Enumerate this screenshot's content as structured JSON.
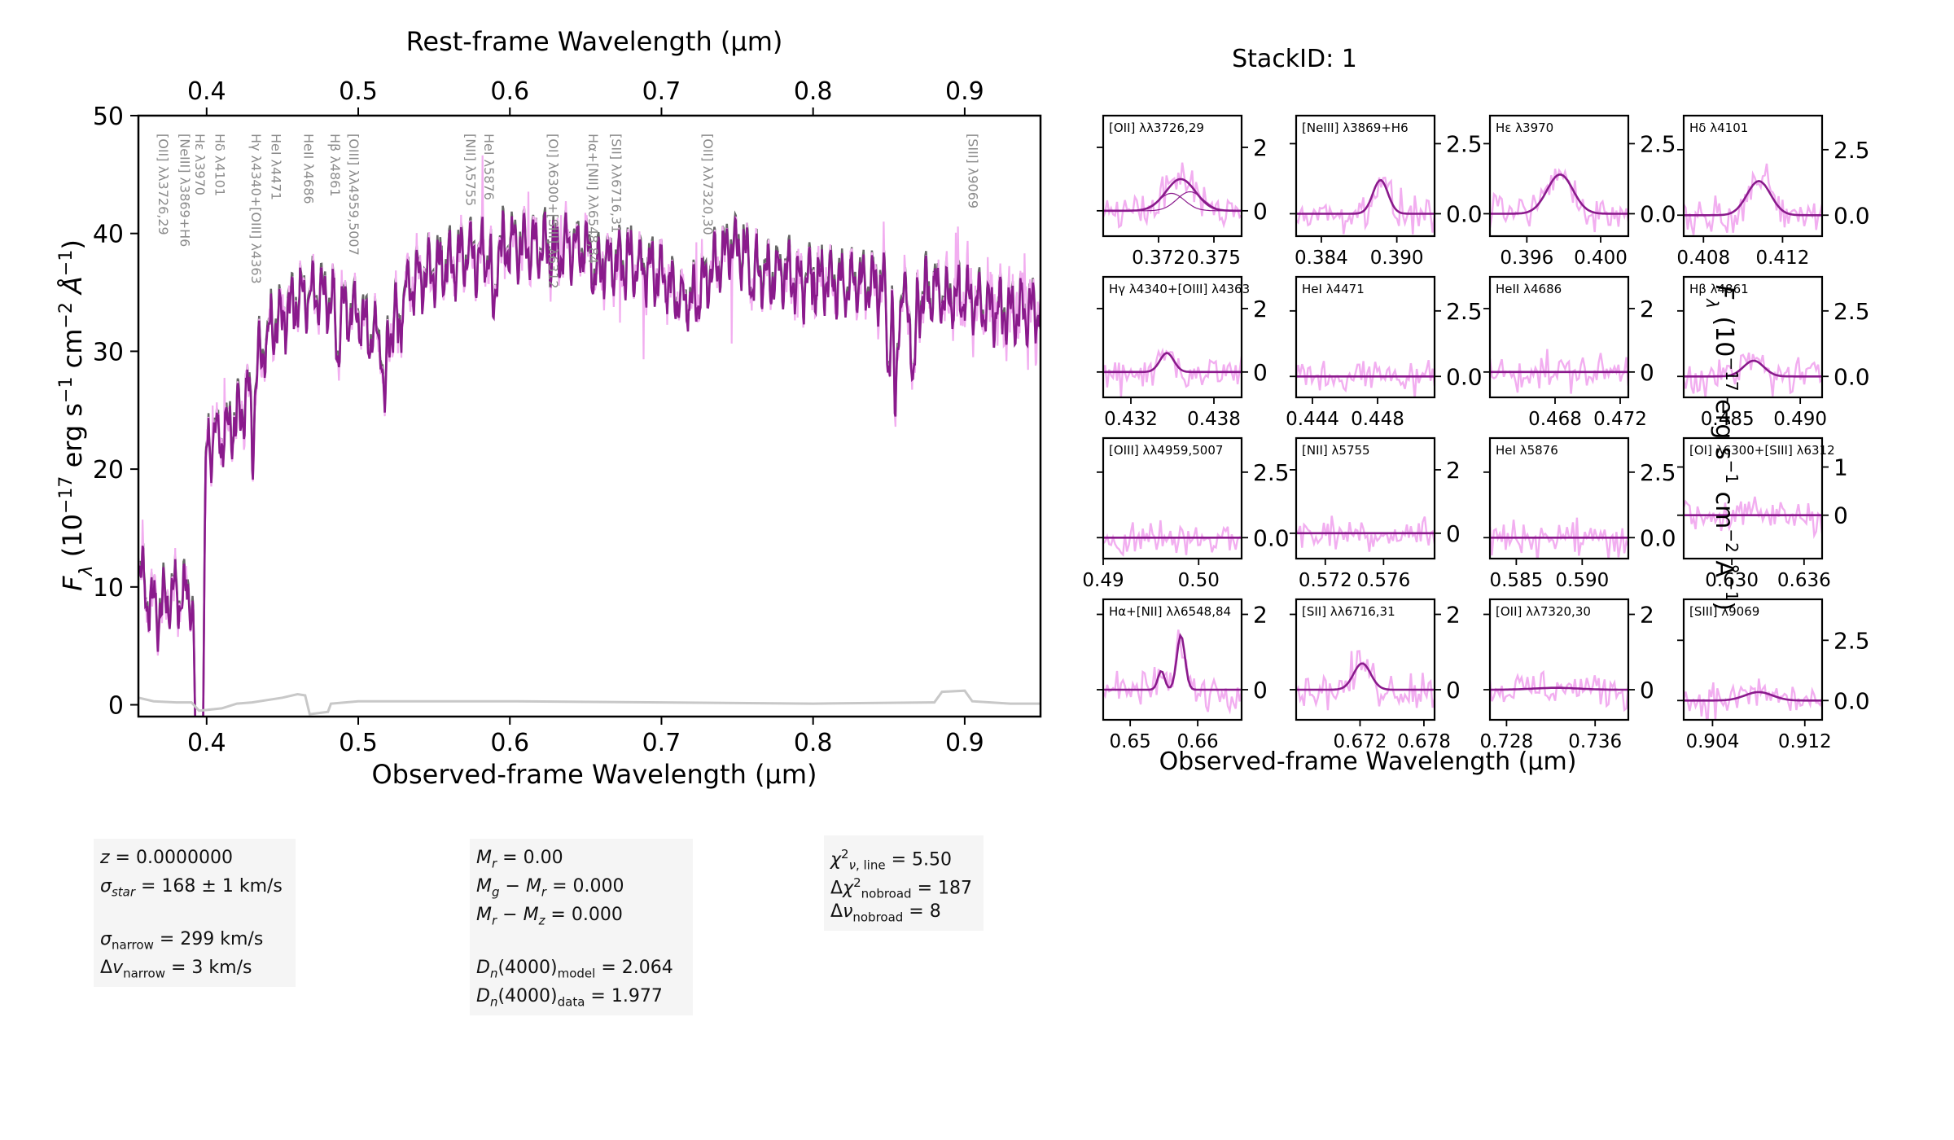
{
  "colors": {
    "data": "#f2aef0",
    "model": "#8a1a8c",
    "continuum": "#666666",
    "error": "#c8c8c8",
    "axis": "#000000",
    "labels": "#8c8c8c"
  },
  "chart_data": {
    "type": "line",
    "main": {
      "title": "Rest-frame Wavelength (μm)",
      "xlabel": "Observed-frame Wavelength (μm)",
      "ylabel": "F_λ (10^-17 erg s^-1 cm^-2 Å^-1)",
      "xlim": [
        0.355,
        0.95
      ],
      "ylim": [
        -1,
        50
      ],
      "xticks": [
        0.4,
        0.5,
        0.6,
        0.7,
        0.8,
        0.9
      ],
      "xtick_labels": [
        "0.4",
        "0.5",
        "0.6",
        "0.7",
        "0.8",
        "0.9"
      ],
      "top_xticks": [
        0.4,
        0.5,
        0.6,
        0.7,
        0.8,
        0.9
      ],
      "top_xtick_labels": [
        "0.4",
        "0.5",
        "0.6",
        "0.7",
        "0.8",
        "0.9"
      ],
      "yticks": [
        0,
        10,
        20,
        30,
        40,
        50
      ],
      "ytick_labels": [
        "0",
        "10",
        "20",
        "30",
        "40",
        "50"
      ],
      "continuum_points": [
        [
          0.355,
          12
        ],
        [
          0.36,
          9
        ],
        [
          0.37,
          8
        ],
        [
          0.38,
          9.5
        ],
        [
          0.39,
          9
        ],
        [
          0.397,
          5
        ],
        [
          0.4,
          22
        ],
        [
          0.41,
          23
        ],
        [
          0.42,
          24
        ],
        [
          0.43,
          27
        ],
        [
          0.44,
          31
        ],
        [
          0.45,
          33
        ],
        [
          0.46,
          34
        ],
        [
          0.47,
          35
        ],
        [
          0.48,
          34.5
        ],
        [
          0.49,
          33.5
        ],
        [
          0.5,
          33
        ],
        [
          0.51,
          31
        ],
        [
          0.52,
          32
        ],
        [
          0.53,
          35
        ],
        [
          0.54,
          36.5
        ],
        [
          0.55,
          37
        ],
        [
          0.56,
          37
        ],
        [
          0.57,
          38
        ],
        [
          0.58,
          38
        ],
        [
          0.59,
          38.5
        ],
        [
          0.6,
          39
        ],
        [
          0.61,
          39
        ],
        [
          0.62,
          38.5
        ],
        [
          0.63,
          38.5
        ],
        [
          0.64,
          39
        ],
        [
          0.65,
          38.5
        ],
        [
          0.66,
          37.5
        ],
        [
          0.67,
          37.5
        ],
        [
          0.68,
          37.5
        ],
        [
          0.69,
          37
        ],
        [
          0.7,
          36.5
        ],
        [
          0.71,
          34.5
        ],
        [
          0.72,
          34
        ],
        [
          0.73,
          36
        ],
        [
          0.74,
          38
        ],
        [
          0.75,
          39
        ],
        [
          0.76,
          37.5
        ],
        [
          0.77,
          36
        ],
        [
          0.78,
          36.5
        ],
        [
          0.79,
          36
        ],
        [
          0.8,
          36
        ],
        [
          0.81,
          36
        ],
        [
          0.82,
          35.5
        ],
        [
          0.83,
          36
        ],
        [
          0.84,
          35.5
        ],
        [
          0.85,
          35
        ],
        [
          0.86,
          34
        ],
        [
          0.87,
          34.5
        ],
        [
          0.88,
          35
        ],
        [
          0.89,
          34.5
        ],
        [
          0.9,
          34.5
        ],
        [
          0.91,
          34
        ],
        [
          0.92,
          33.5
        ],
        [
          0.93,
          33
        ],
        [
          0.94,
          33.5
        ],
        [
          0.95,
          33.5
        ]
      ],
      "error_points": [
        [
          0.355,
          0.6
        ],
        [
          0.365,
          0.3
        ],
        [
          0.38,
          0.2
        ],
        [
          0.39,
          0.2
        ],
        [
          0.395,
          -0.5
        ],
        [
          0.41,
          -0.3
        ],
        [
          0.42,
          0.1
        ],
        [
          0.43,
          0.2
        ],
        [
          0.45,
          0.6
        ],
        [
          0.46,
          0.9
        ],
        [
          0.465,
          0.8
        ],
        [
          0.468,
          -0.8
        ],
        [
          0.48,
          -0.6
        ],
        [
          0.482,
          0.1
        ],
        [
          0.5,
          0.3
        ],
        [
          0.6,
          0.3
        ],
        [
          0.7,
          0.2
        ],
        [
          0.8,
          0.1
        ],
        [
          0.88,
          0.2
        ],
        [
          0.885,
          1.1
        ],
        [
          0.9,
          1.2
        ],
        [
          0.905,
          0.3
        ],
        [
          0.93,
          0.1
        ],
        [
          0.95,
          0.1
        ]
      ],
      "line_markers": [
        {
          "x": 0.3728,
          "label": "[OII] λλ3726,29"
        },
        {
          "x": 0.3869,
          "label": "[NeIII] λ3869+H6"
        },
        {
          "x": 0.397,
          "label": "Hε λ3970"
        },
        {
          "x": 0.4101,
          "label": "Hδ λ4101"
        },
        {
          "x": 0.434,
          "label": "Hγ λ4340+[OIII] λ4363"
        },
        {
          "x": 0.4471,
          "label": "HeI λ4471"
        },
        {
          "x": 0.4686,
          "label": "HeII λ4686"
        },
        {
          "x": 0.4861,
          "label": "Hβ λ4861"
        },
        {
          "x": 0.4984,
          "label": "[OIII] λλ4959,5007"
        },
        {
          "x": 0.5755,
          "label": "[NII] λ5755"
        },
        {
          "x": 0.5876,
          "label": "HeI λ5876"
        },
        {
          "x": 0.63,
          "label": "[OI] λ6300+[SIII] λ6312"
        },
        {
          "x": 0.6563,
          "label": "Hα+[NII] λλ6548,84"
        },
        {
          "x": 0.6716,
          "label": "[SII] λλ6716,31"
        },
        {
          "x": 0.732,
          "label": "[OII] λλ7320,30"
        },
        {
          "x": 0.9069,
          "label": "[SIII] λ9069"
        }
      ]
    },
    "stack_title": "StackID: 1",
    "zoom_xlabel": "Observed-frame Wavelength (μm)",
    "zoom_ylabel": "F_λ (10^-17 erg s^-1 cm^-2 Å^-1)",
    "zoom_panels": [
      {
        "label": "[OII] λλ3726,29",
        "xlim": [
          0.369,
          0.3765
        ],
        "ylim": [
          -0.8,
          3
        ],
        "xticks": [
          0.372,
          0.375
        ],
        "xtick_labels": [
          "0.372",
          "0.375"
        ],
        "yticks": [
          0,
          2
        ],
        "ytick_labels": [
          "0",
          "2"
        ],
        "peaks": [
          {
            "x": 0.3732,
            "a": 1.0,
            "s": 0.0008
          }
        ],
        "double": true
      },
      {
        "label": "[NeIII] λ3869+H6",
        "xlim": [
          0.382,
          0.393
        ],
        "ylim": [
          -0.8,
          3.5
        ],
        "xticks": [
          0.384,
          0.39
        ],
        "xtick_labels": [
          "0.384",
          "0.390"
        ],
        "yticks": [
          0,
          2.5
        ],
        "ytick_labels": [
          "0.0",
          "2.5"
        ],
        "peaks": [
          {
            "x": 0.3887,
            "a": 1.2,
            "s": 0.0006
          }
        ]
      },
      {
        "label": "Hε λ3970",
        "xlim": [
          0.394,
          0.4015
        ],
        "ylim": [
          -0.8,
          3.5
        ],
        "xticks": [
          0.396,
          0.4
        ],
        "xtick_labels": [
          "0.396",
          "0.400"
        ],
        "yticks": [
          0,
          2.5
        ],
        "ytick_labels": [
          "0.0",
          "2.5"
        ],
        "peaks": [
          {
            "x": 0.3978,
            "a": 1.4,
            "s": 0.0007
          }
        ]
      },
      {
        "label": "Hδ λ4101",
        "xlim": [
          0.407,
          0.414
        ],
        "ylim": [
          -0.8,
          3.8
        ],
        "xticks": [
          0.408,
          0.412
        ],
        "xtick_labels": [
          "0.408",
          "0.412"
        ],
        "yticks": [
          0,
          2.5
        ],
        "ytick_labels": [
          "0.0",
          "2.5"
        ],
        "peaks": [
          {
            "x": 0.4108,
            "a": 1.3,
            "s": 0.0006
          }
        ]
      },
      {
        "label": "Hγ λ4340+[OIII] λ4363",
        "xlim": [
          0.43,
          0.44
        ],
        "ylim": [
          -0.8,
          3
        ],
        "xticks": [
          0.432,
          0.438
        ],
        "xtick_labels": [
          "0.432",
          "0.438"
        ],
        "yticks": [
          0,
          2
        ],
        "ytick_labels": [
          "0",
          "2"
        ],
        "peaks": [
          {
            "x": 0.4346,
            "a": 0.6,
            "s": 0.0005
          }
        ]
      },
      {
        "label": "HeI λ4471",
        "xlim": [
          0.443,
          0.4515
        ],
        "ylim": [
          -0.8,
          3.8
        ],
        "xticks": [
          0.444,
          0.448
        ],
        "xtick_labels": [
          "0.444",
          "0.448"
        ],
        "yticks": [
          0,
          2.5
        ],
        "ytick_labels": [
          "0.0",
          "2.5"
        ],
        "peaks": []
      },
      {
        "label": "HeII λ4686",
        "xlim": [
          0.464,
          0.4725
        ],
        "ylim": [
          -0.8,
          3
        ],
        "xticks": [
          0.468,
          0.472
        ],
        "xtick_labels": [
          "0.468",
          "0.472"
        ],
        "yticks": [
          0,
          2
        ],
        "ytick_labels": [
          "0",
          "2"
        ],
        "peaks": []
      },
      {
        "label": "Hβ λ4861",
        "xlim": [
          0.482,
          0.4915
        ],
        "ylim": [
          -0.8,
          3.8
        ],
        "xticks": [
          0.485,
          0.49
        ],
        "xtick_labels": [
          "0.485",
          "0.490"
        ],
        "yticks": [
          0,
          2.5
        ],
        "ytick_labels": [
          "0.0",
          "2.5"
        ],
        "peaks": [
          {
            "x": 0.4868,
            "a": 0.6,
            "s": 0.0007
          }
        ]
      },
      {
        "label": "[OIII] λλ4959,5007",
        "xlim": [
          0.49,
          0.5045
        ],
        "ylim": [
          -0.8,
          3.8
        ],
        "xticks": [
          0.49,
          0.5
        ],
        "xtick_labels": [
          "0.49",
          "0.50"
        ],
        "yticks": [
          0,
          2.5
        ],
        "ytick_labels": [
          "0.0",
          "2.5"
        ],
        "peaks": []
      },
      {
        "label": "[NII] λ5755",
        "xlim": [
          0.57,
          0.5795
        ],
        "ylim": [
          -0.8,
          3
        ],
        "xticks": [
          0.572,
          0.576
        ],
        "xtick_labels": [
          "0.572",
          "0.576"
        ],
        "yticks": [
          0,
          2
        ],
        "ytick_labels": [
          "0",
          "2"
        ],
        "peaks": []
      },
      {
        "label": "HeI λ5876",
        "xlim": [
          0.583,
          0.5935
        ],
        "ylim": [
          -0.8,
          3.8
        ],
        "xticks": [
          0.585,
          0.59
        ],
        "xtick_labels": [
          "0.585",
          "0.590"
        ],
        "yticks": [
          0,
          2.5
        ],
        "ytick_labels": [
          "0.0",
          "2.5"
        ],
        "peaks": []
      },
      {
        "label": "[OI] λ6300+[SIII] λ6312",
        "xlim": [
          0.626,
          0.6375
        ],
        "ylim": [
          -0.9,
          1.6
        ],
        "xticks": [
          0.63,
          0.636
        ],
        "xtick_labels": [
          "0.630",
          "0.636"
        ],
        "yticks": [
          0,
          1
        ],
        "ytick_labels": [
          "0",
          "1"
        ],
        "peaks": []
      },
      {
        "label": "Hα+[NII] λλ6548,84",
        "xlim": [
          0.646,
          0.6665
        ],
        "ylim": [
          -0.8,
          2.4
        ],
        "xticks": [
          0.65,
          0.66
        ],
        "xtick_labels": [
          "0.65",
          "0.66"
        ],
        "yticks": [
          0,
          2
        ],
        "ytick_labels": [
          "0",
          "2"
        ],
        "peaks": [
          {
            "x": 0.6546,
            "a": 0.5,
            "s": 0.0005
          },
          {
            "x": 0.6575,
            "a": 1.45,
            "s": 0.0006
          }
        ]
      },
      {
        "label": "[SII] λλ6716,31",
        "xlim": [
          0.666,
          0.679
        ],
        "ylim": [
          -0.8,
          2.4
        ],
        "xticks": [
          0.672,
          0.678
        ],
        "xtick_labels": [
          "0.672",
          "0.678"
        ],
        "yticks": [
          0,
          2
        ],
        "ytick_labels": [
          "0",
          "2"
        ],
        "peaks": [
          {
            "x": 0.6722,
            "a": 0.7,
            "s": 0.0008
          }
        ]
      },
      {
        "label": "[OII] λλ7320,30",
        "xlim": [
          0.7265,
          0.739
        ],
        "ylim": [
          -0.8,
          2.4
        ],
        "xticks": [
          0.728,
          0.736
        ],
        "xtick_labels": [
          "0.728",
          "0.736"
        ],
        "yticks": [
          0,
          2
        ],
        "ytick_labels": [
          "0",
          "2"
        ],
        "peaks": [
          {
            "x": 0.7325,
            "a": 0.05,
            "s": 0.002
          }
        ]
      },
      {
        "label": "[SIII] λ9069",
        "xlim": [
          0.9015,
          0.9135
        ],
        "ylim": [
          -0.8,
          4.2
        ],
        "xticks": [
          0.904,
          0.912
        ],
        "xtick_labels": [
          "0.904",
          "0.912"
        ],
        "yticks": [
          0,
          2.5
        ],
        "ytick_labels": [
          "0.0",
          "2.5"
        ],
        "peaks": [
          {
            "x": 0.908,
            "a": 0.35,
            "s": 0.0012
          }
        ]
      }
    ]
  },
  "info_panels": [
    {
      "rows": [
        {
          "html": "<span class='it'>z</span> = 0.0000000"
        },
        {
          "html": "<span class='it'>σ<sub>star</sub></span> = 168 ± 1 km/s"
        },
        {
          "gap": true
        },
        {
          "html": "<span class='it'>σ</span><sub>narrow</sub> = 299 km/s"
        },
        {
          "html": "Δ<span class='it'>v</span><sub>narrow</sub> = 3 km/s"
        }
      ]
    },
    {
      "rows": [
        {
          "html": "<span class='it'>M<sub>r</sub></span> = 0.00"
        },
        {
          "html": "<span class='it'>M<sub>g</sub></span> − <span class='it'>M<sub>r</sub></span> = 0.000"
        },
        {
          "html": "<span class='it'>M<sub>r</sub></span> − <span class='it'>M<sub>z</sub></span> = 0.000"
        },
        {
          "gap": true
        },
        {
          "html": "<span class='it'>D<sub>n</sub></span>(4000)<sub>model</sub> = 2.064"
        },
        {
          "html": "<span class='it'>D<sub>n</sub></span>(4000)<sub>data</sub> = 1.977"
        }
      ]
    },
    {
      "rows": [
        {
          "html": "<span class='it'>χ</span><sup>2</sup><sub><span class='it'>ν</span>, line</sub> = 5.50"
        },
        {
          "html": "Δ<span class='it'>χ</span><sup>2</sup><sub>nobroad</sub> = 187"
        },
        {
          "html": "Δ<span class='it'>ν</span><sub>nobroad</sub> = 8"
        }
      ]
    }
  ]
}
